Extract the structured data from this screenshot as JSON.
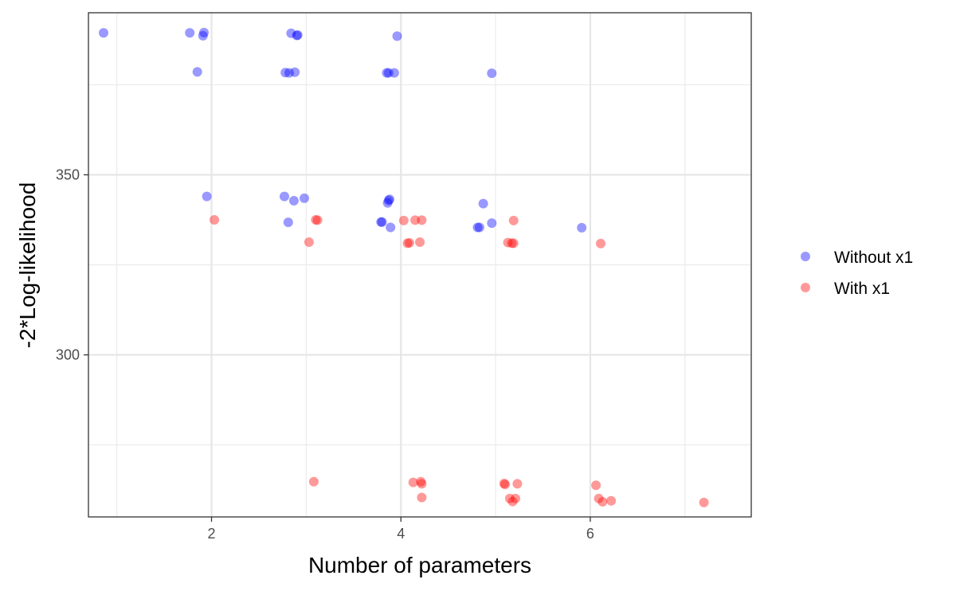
{
  "chart_data": {
    "type": "scatter",
    "title": "",
    "xlabel": "Number of parameters",
    "ylabel": "-2*Log-likelihood",
    "xlim": [
      0.7,
      7.7
    ],
    "ylim": [
      255,
      395
    ],
    "x_ticks": [
      2,
      4,
      6
    ],
    "x_tick_labels": [
      "2",
      "4",
      "6"
    ],
    "y_ticks": [
      300,
      350
    ],
    "y_tick_labels": [
      "300",
      "350"
    ],
    "grid": true,
    "legend_position": "right",
    "series": [
      {
        "name": "Without x1",
        "color": "#0000ff",
        "points": [
          [
            0.86,
            389.4
          ],
          [
            1.77,
            389.4
          ],
          [
            1.91,
            388.6
          ],
          [
            1.92,
            389.5
          ],
          [
            1.85,
            378.6
          ],
          [
            2.84,
            389.3
          ],
          [
            2.9,
            388.7
          ],
          [
            2.91,
            388.8
          ],
          [
            2.78,
            378.4
          ],
          [
            2.82,
            378.3
          ],
          [
            2.88,
            378.5
          ],
          [
            3.85,
            378.3
          ],
          [
            3.87,
            378.3
          ],
          [
            3.93,
            378.3
          ],
          [
            3.96,
            388.5
          ],
          [
            4.96,
            378.2
          ],
          [
            1.95,
            344.0
          ],
          [
            2.77,
            344.0
          ],
          [
            2.87,
            342.8
          ],
          [
            2.98,
            343.5
          ],
          [
            2.81,
            336.8
          ],
          [
            3.79,
            336.9
          ],
          [
            3.8,
            336.9
          ],
          [
            3.86,
            342.2
          ],
          [
            3.87,
            342.9
          ],
          [
            3.88,
            343.2
          ],
          [
            3.89,
            335.4
          ],
          [
            4.81,
            335.4
          ],
          [
            4.83,
            335.4
          ],
          [
            4.87,
            342.0
          ],
          [
            4.96,
            336.6
          ],
          [
            5.91,
            335.3
          ]
        ]
      },
      {
        "name": "With x1",
        "color": "#ff0000",
        "points": [
          [
            2.03,
            337.5
          ],
          [
            3.03,
            331.3
          ],
          [
            3.1,
            337.5
          ],
          [
            3.12,
            337.4
          ],
          [
            4.03,
            337.3
          ],
          [
            4.07,
            331.0
          ],
          [
            4.09,
            331.1
          ],
          [
            4.15,
            337.4
          ],
          [
            4.2,
            331.3
          ],
          [
            4.22,
            337.4
          ],
          [
            5.13,
            331.2
          ],
          [
            5.17,
            331.0
          ],
          [
            5.19,
            331.0
          ],
          [
            5.19,
            337.3
          ],
          [
            6.11,
            330.9
          ],
          [
            3.08,
            264.8
          ],
          [
            4.13,
            264.6
          ],
          [
            4.21,
            264.8
          ],
          [
            4.22,
            264.2
          ],
          [
            4.22,
            260.4
          ],
          [
            5.09,
            264.3
          ],
          [
            5.1,
            264.0
          ],
          [
            5.15,
            260.1
          ],
          [
            5.18,
            259.3
          ],
          [
            5.21,
            260.1
          ],
          [
            5.23,
            264.2
          ],
          [
            6.06,
            263.8
          ],
          [
            6.09,
            260.1
          ],
          [
            6.13,
            259.2
          ],
          [
            6.22,
            259.5
          ],
          [
            7.2,
            259.0
          ]
        ]
      }
    ]
  }
}
